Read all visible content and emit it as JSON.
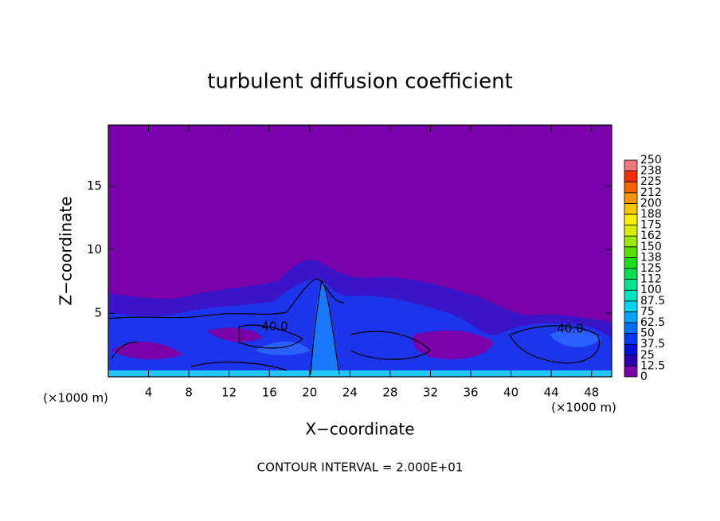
{
  "chart_data": {
    "type": "contour",
    "title": "turbulent diffusion coefficient",
    "x_label": "X−coordinate",
    "y_label": "Z−coordinate",
    "x_unit_left": "(×1000 m)",
    "x_unit_right": "(×1000 m)",
    "footnote": "CONTOUR INTERVAL = 2.000E+01",
    "contour_labels": [
      "40.0",
      "40.0"
    ],
    "xlim": [
      0,
      50
    ],
    "xticks": [
      4,
      8,
      12,
      16,
      20,
      24,
      28,
      32,
      36,
      40,
      44,
      48
    ],
    "ylim": [
      0,
      19.8
    ],
    "yticks": [
      5,
      10,
      15
    ],
    "colorbar": {
      "ticks": [
        0,
        12.5,
        25,
        37.5,
        50,
        62.5,
        75,
        87.5,
        100,
        {
          "value": 112.5,
          "label": "112"
        },
        125,
        {
          "value": 137.5,
          "label": "138"
        },
        150,
        {
          "value": 162.5,
          "label": "162"
        },
        175,
        {
          "value": 187.5,
          "label": "188"
        },
        200,
        {
          "value": 212.5,
          "label": "212"
        },
        225,
        {
          "value": 237.5,
          "label": "238"
        },
        250
      ],
      "colors": [
        "#7a00aa",
        "#2a00b4",
        "#0010dc",
        "#0038ff",
        "#0070ff",
        "#00a4ff",
        "#00d4f4",
        "#00e6c4",
        "#00e48c",
        "#00e050",
        "#18e018",
        "#58e000",
        "#98e800",
        "#d8f000",
        "#f8f000",
        "#f8c400",
        "#f89400",
        "#f86000",
        "#f02c00",
        "#f07878"
      ]
    }
  }
}
